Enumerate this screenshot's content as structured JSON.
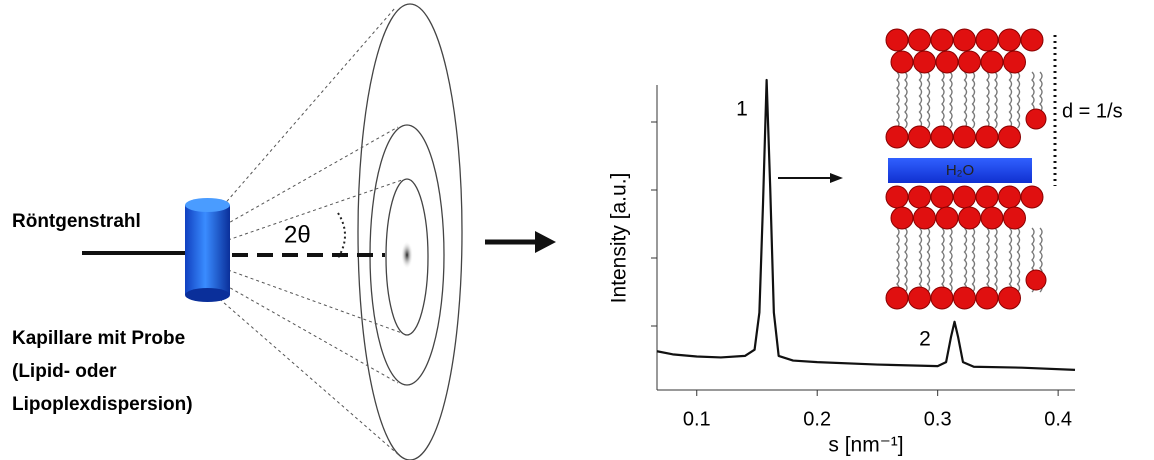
{
  "diagram": {
    "beam_label": "Röntgenstrahl",
    "angle_label": "2θ",
    "sample_label": [
      "Kapillare mit Probe",
      "(Lipid- oder",
      "Lipoplexdispersion)"
    ],
    "water_label": "H₂O",
    "spacing_label": "d = 1/s"
  },
  "chart_data": {
    "type": "line",
    "x_label": "s [nm⁻¹]",
    "y_label": "Intensity [a.u.]",
    "xlim": [
      0.067,
      0.414
    ],
    "xticks": [
      0.1,
      0.2,
      0.3,
      0.4
    ],
    "ylim": [
      0,
      1
    ],
    "color": "#111111",
    "annotations": [
      "1",
      "2"
    ],
    "x": [
      0.067,
      0.08,
      0.1,
      0.12,
      0.14,
      0.148,
      0.152,
      0.155,
      0.158,
      0.161,
      0.164,
      0.168,
      0.18,
      0.2,
      0.25,
      0.3,
      0.307,
      0.311,
      0.314,
      0.317,
      0.321,
      0.33,
      0.37,
      0.414
    ],
    "values": [
      0.125,
      0.115,
      0.108,
      0.105,
      0.11,
      0.13,
      0.25,
      0.6,
      1.0,
      0.65,
      0.25,
      0.11,
      0.095,
      0.09,
      0.082,
      0.077,
      0.09,
      0.17,
      0.22,
      0.17,
      0.09,
      0.075,
      0.072,
      0.065
    ]
  }
}
